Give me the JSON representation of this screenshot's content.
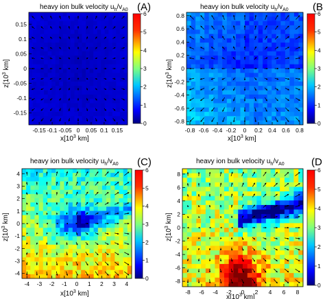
{
  "chart_data": [
    {
      "type": "heatmap",
      "panel_label": "(A)",
      "title_main": "heavy ion bulk velocity u",
      "title_sub": "h",
      "title_mid": "/v",
      "title_sub2": "A0",
      "xlabel_main": "x[10",
      "xlabel_sup": "3",
      "xlabel_unit": " km]",
      "ylabel_main": "z[10",
      "ylabel_sup": "3",
      "ylabel_unit": " km]",
      "x_ticks": [
        "-0.15",
        "-0.1",
        "-0.05",
        "0",
        "0.05",
        "0.1",
        "0.15"
      ],
      "x_tick_values": [
        -0.15,
        -0.1,
        -0.05,
        0,
        0.05,
        0.1,
        0.15
      ],
      "y_ticks": [
        "0.15",
        "0.1",
        "0.05",
        "0",
        "-0.05",
        "-0.1",
        "-0.15"
      ],
      "y_tick_values": [
        0.15,
        0.1,
        0.05,
        0,
        -0.05,
        -0.1,
        -0.15
      ],
      "xlim": [
        -0.19,
        0.19
      ],
      "ylim": [
        -0.19,
        0.19
      ],
      "colorbar_ticks": [
        "6",
        "5",
        "4",
        "3",
        "2",
        "1",
        "0"
      ],
      "colorbar_range": [
        0,
        6
      ],
      "typical_value": 0.4
    },
    {
      "type": "heatmap",
      "panel_label": "(B",
      "title_main": "heavy ion bulk velocity u",
      "title_sub": "h",
      "title_mid": "/v",
      "title_sub2": "A0",
      "xlabel_main": "x[10",
      "xlabel_sup": "3",
      "xlabel_unit": " km]",
      "ylabel_main": "z[10",
      "ylabel_sup": "3",
      "ylabel_unit": " km]",
      "x_ticks": [
        "-0.8",
        "-0.6",
        "-0.4",
        "-0.2",
        "0",
        "0.2",
        "0.4",
        "0.6",
        "0.8"
      ],
      "x_tick_values": [
        -0.8,
        -0.6,
        -0.4,
        -0.2,
        0,
        0.2,
        0.4,
        0.6,
        0.8
      ],
      "y_ticks": [
        "0.8",
        "0.6",
        "0.4",
        "0.2",
        "0",
        "-0.2",
        "-0.4",
        "-0.6",
        "-0.8"
      ],
      "y_tick_values": [
        0.8,
        0.6,
        0.4,
        0.2,
        0,
        -0.2,
        -0.4,
        -0.6,
        -0.8
      ],
      "xlim": [
        -0.85,
        0.85
      ],
      "ylim": [
        -0.85,
        0.85
      ],
      "colorbar_ticks": [
        "6",
        "5",
        "4",
        "3",
        "2",
        "1",
        "0"
      ],
      "colorbar_range": [
        0,
        6
      ],
      "typical_value": 1.0
    },
    {
      "type": "heatmap",
      "panel_label": "(C)",
      "title_main": "heavy ion bulk velocity u",
      "title_sub": "h",
      "title_mid": "/v",
      "title_sub2": "A0",
      "xlabel_main": "x[10",
      "xlabel_sup": "3",
      "xlabel_unit": " km]",
      "ylabel_main": "z[10",
      "ylabel_sup": "3",
      "ylabel_unit": " km]",
      "x_ticks": [
        "-4",
        "-3",
        "-2",
        "-1",
        "0",
        "1",
        "2",
        "3",
        "4"
      ],
      "x_tick_values": [
        -4,
        -3,
        -2,
        -1,
        0,
        1,
        2,
        3,
        4
      ],
      "y_ticks": [
        "4",
        "3",
        "2",
        "1",
        "0",
        "-1",
        "-2",
        "-3",
        "-4"
      ],
      "y_tick_values": [
        4,
        3,
        2,
        1,
        0,
        -1,
        -2,
        -3,
        -4
      ],
      "xlim": [
        -4.4,
        4.4
      ],
      "ylim": [
        -4.4,
        4.4
      ],
      "colorbar_ticks": [
        "6",
        "5",
        "4",
        "3",
        "2",
        "1",
        "0"
      ],
      "colorbar_range": [
        0,
        6
      ],
      "typical_value": 3.0
    },
    {
      "type": "heatmap",
      "panel_label": "(D",
      "title_main": "heavy ion bulk velocity u",
      "title_sub": "h",
      "title_mid": "/v",
      "title_sub2": "A0",
      "xlabel_main": "x[10",
      "xlabel_sup": "3",
      "xlabel_unit": " km]",
      "ylabel_main": "z[10",
      "ylabel_sup": "3",
      "ylabel_unit": " km]",
      "x_ticks": [
        "-8",
        "-6",
        "-4",
        "-2",
        "0",
        "2",
        "4",
        "6",
        "8"
      ],
      "x_tick_values": [
        -8,
        -6,
        -4,
        -2,
        0,
        2,
        4,
        6,
        8
      ],
      "y_ticks": [
        "8",
        "6",
        "4",
        "2",
        "0",
        "-2",
        "-4",
        "-6",
        "-8"
      ],
      "y_tick_values": [
        8,
        6,
        4,
        2,
        0,
        -2,
        -4,
        -6,
        -8
      ],
      "xlim": [
        -8.8,
        8.8
      ],
      "ylim": [
        -8.8,
        8.8
      ],
      "colorbar_ticks": [
        "6",
        "5",
        "4",
        "3",
        "2",
        "1",
        "0"
      ],
      "colorbar_range": [
        0,
        6
      ],
      "typical_value": 3.5
    }
  ],
  "colors": {
    "colormap": [
      "#00007f",
      "#0000ff",
      "#007fff",
      "#00ffff",
      "#7fff7f",
      "#ffff00",
      "#ff7f00",
      "#ff0000",
      "#7f0000"
    ],
    "arrow": "#000000"
  }
}
